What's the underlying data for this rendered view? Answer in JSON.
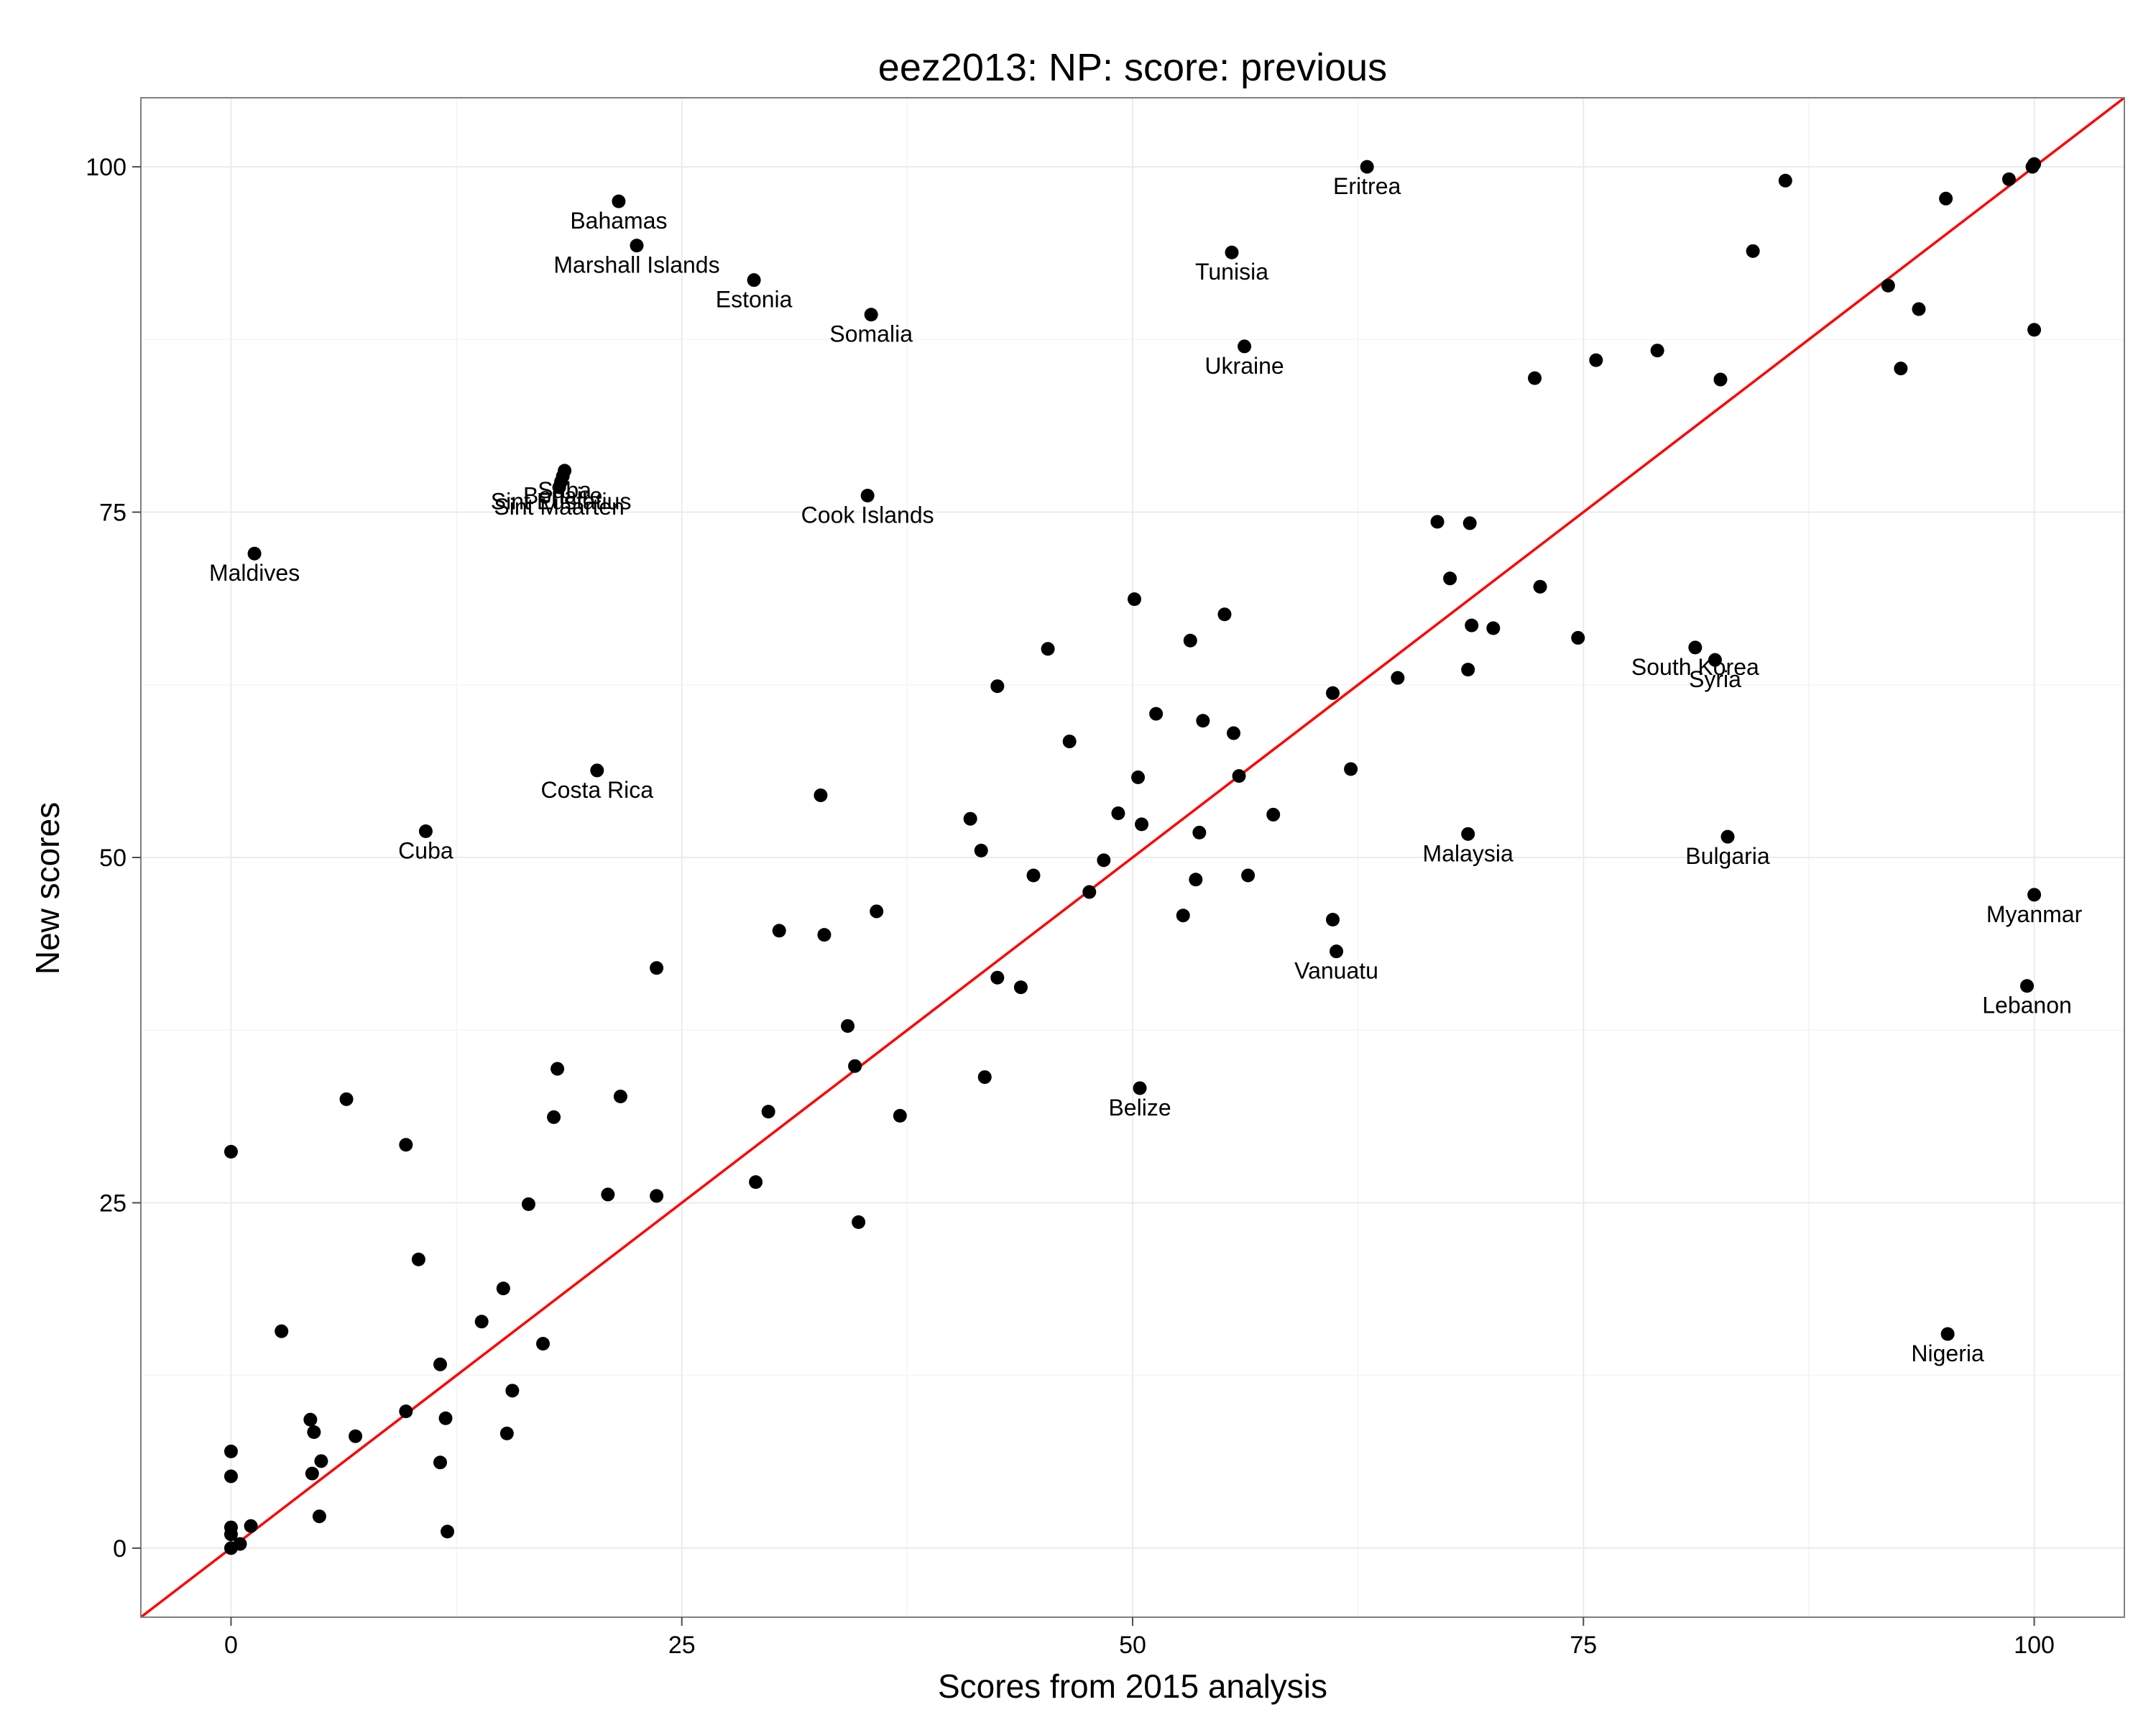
{
  "chart_data": {
    "type": "scatter",
    "title": "eez2013: NP: score: previous",
    "xlabel": "Scores from 2015 analysis",
    "ylabel": "New scores",
    "xlim": [
      -5,
      105
    ],
    "ylim": [
      -5,
      105
    ],
    "xticks": [
      0,
      25,
      50,
      75,
      100
    ],
    "yticks": [
      0,
      25,
      50,
      75,
      100
    ],
    "grid": true,
    "reference_line": {
      "slope": 1,
      "intercept": 0,
      "color": "#ff0000"
    },
    "point_color": "#000000",
    "labeled_points": [
      {
        "label": "Eritrea",
        "x": 63,
        "y": 100
      },
      {
        "label": "Bahamas",
        "x": 21.5,
        "y": 97.5
      },
      {
        "label": "Marshall Islands",
        "x": 22.5,
        "y": 94.3
      },
      {
        "label": "Estonia",
        "x": 29,
        "y": 91.8
      },
      {
        "label": "Somalia",
        "x": 35.5,
        "y": 89.3
      },
      {
        "label": "Tunisia",
        "x": 55.5,
        "y": 93.8
      },
      {
        "label": "Ukraine",
        "x": 56.2,
        "y": 87
      },
      {
        "label": "Cook Islands",
        "x": 35.3,
        "y": 76.2
      },
      {
        "label": "Saba",
        "x": 18.5,
        "y": 78
      },
      {
        "label": "Bonaire",
        "x": 18.4,
        "y": 77.6
      },
      {
        "label": "Sint Eustatius",
        "x": 18.3,
        "y": 77.2
      },
      {
        "label": "Sint Maarten",
        "x": 18.2,
        "y": 76.8
      },
      {
        "label": "Maldives",
        "x": 1.3,
        "y": 72
      },
      {
        "label": "Costa Rica",
        "x": 20.3,
        "y": 56.3
      },
      {
        "label": "Cuba",
        "x": 10.8,
        "y": 51.9
      },
      {
        "label": "South Korea",
        "x": 81.2,
        "y": 65.2
      },
      {
        "label": "Syria",
        "x": 82.3,
        "y": 64.3
      },
      {
        "label": "Malaysia",
        "x": 68.6,
        "y": 51.7
      },
      {
        "label": "Bulgaria",
        "x": 83,
        "y": 51.5
      },
      {
        "label": "Myanmar",
        "x": 100,
        "y": 47.3
      },
      {
        "label": "Lebanon",
        "x": 99.6,
        "y": 40.7
      },
      {
        "label": "Vanuatu",
        "x": 61.3,
        "y": 43.2
      },
      {
        "label": "Belize",
        "x": 50.4,
        "y": 33.3
      },
      {
        "label": "Nigeria",
        "x": 95.2,
        "y": 15.5
      }
    ],
    "points": [
      [
        0,
        0
      ],
      [
        0,
        1
      ],
      [
        0,
        1.5
      ],
      [
        0.5,
        0.3
      ],
      [
        1.1,
        1.6
      ],
      [
        0,
        5.2
      ],
      [
        0,
        7
      ],
      [
        0,
        28.7
      ],
      [
        4.4,
        9.3
      ],
      [
        4.5,
        5.4
      ],
      [
        4.6,
        8.4
      ],
      [
        4.9,
        2.3
      ],
      [
        5,
        6.3
      ],
      [
        6.4,
        32.5
      ],
      [
        6.9,
        8.1
      ],
      [
        2.8,
        15.7
      ],
      [
        9.7,
        9.9
      ],
      [
        9.7,
        29.2
      ],
      [
        10.4,
        20.9
      ],
      [
        11.6,
        13.3
      ],
      [
        11.6,
        6.2
      ],
      [
        11.9,
        9.4
      ],
      [
        12,
        1.2
      ],
      [
        13.9,
        16.4
      ],
      [
        15.1,
        18.8
      ],
      [
        15.3,
        8.3
      ],
      [
        15.6,
        11.4
      ],
      [
        16.5,
        24.9
      ],
      [
        17.3,
        14.8
      ],
      [
        17.9,
        31.2
      ],
      [
        18.1,
        34.7
      ],
      [
        20.9,
        25.6
      ],
      [
        21.6,
        32.7
      ],
      [
        23.6,
        42
      ],
      [
        23.6,
        25.5
      ],
      [
        29.1,
        26.5
      ],
      [
        29.8,
        31.6
      ],
      [
        30.4,
        44.7
      ],
      [
        32.7,
        54.5
      ],
      [
        32.9,
        44.4
      ],
      [
        34.2,
        37.8
      ],
      [
        34.6,
        34.9
      ],
      [
        34.8,
        23.6
      ],
      [
        35.8,
        46.1
      ],
      [
        37.1,
        31.3
      ],
      [
        41,
        52.8
      ],
      [
        41.6,
        50.5
      ],
      [
        41.8,
        34.1
      ],
      [
        42.5,
        62.4
      ],
      [
        42.5,
        41.3
      ],
      [
        43.8,
        40.6
      ],
      [
        44.5,
        48.7
      ],
      [
        45.3,
        65.1
      ],
      [
        46.5,
        58.4
      ],
      [
        47.6,
        47.5
      ],
      [
        48.4,
        49.8
      ],
      [
        49.2,
        53.2
      ],
      [
        50.1,
        68.7
      ],
      [
        50.3,
        55.8
      ],
      [
        50.5,
        52.4
      ],
      [
        51.3,
        60.4
      ],
      [
        52.8,
        45.8
      ],
      [
        53.2,
        65.7
      ],
      [
        53.5,
        48.4
      ],
      [
        53.7,
        51.8
      ],
      [
        53.9,
        59.9
      ],
      [
        55.1,
        67.6
      ],
      [
        55.6,
        59
      ],
      [
        55.9,
        55.9
      ],
      [
        56.4,
        48.7
      ],
      [
        57.8,
        53.1
      ],
      [
        61.1,
        61.9
      ],
      [
        61.1,
        45.5
      ],
      [
        62.1,
        56.4
      ],
      [
        64.7,
        63
      ],
      [
        66.9,
        74.3
      ],
      [
        67.6,
        70.2
      ],
      [
        68.6,
        63.6
      ],
      [
        68.7,
        74.2
      ],
      [
        68.8,
        66.8
      ],
      [
        70,
        66.6
      ],
      [
        72.3,
        84.7
      ],
      [
        72.6,
        69.6
      ],
      [
        74.7,
        65.9
      ],
      [
        75.7,
        86
      ],
      [
        79.1,
        86.7
      ],
      [
        82.6,
        84.6
      ],
      [
        84.4,
        93.9
      ],
      [
        86.2,
        99
      ],
      [
        91.9,
        91.4
      ],
      [
        92.6,
        85.4
      ],
      [
        93.6,
        89.7
      ],
      [
        95.1,
        97.7
      ],
      [
        98.6,
        99.1
      ],
      [
        99.9,
        100
      ],
      [
        100,
        100.2
      ],
      [
        100,
        88.2
      ]
    ]
  }
}
